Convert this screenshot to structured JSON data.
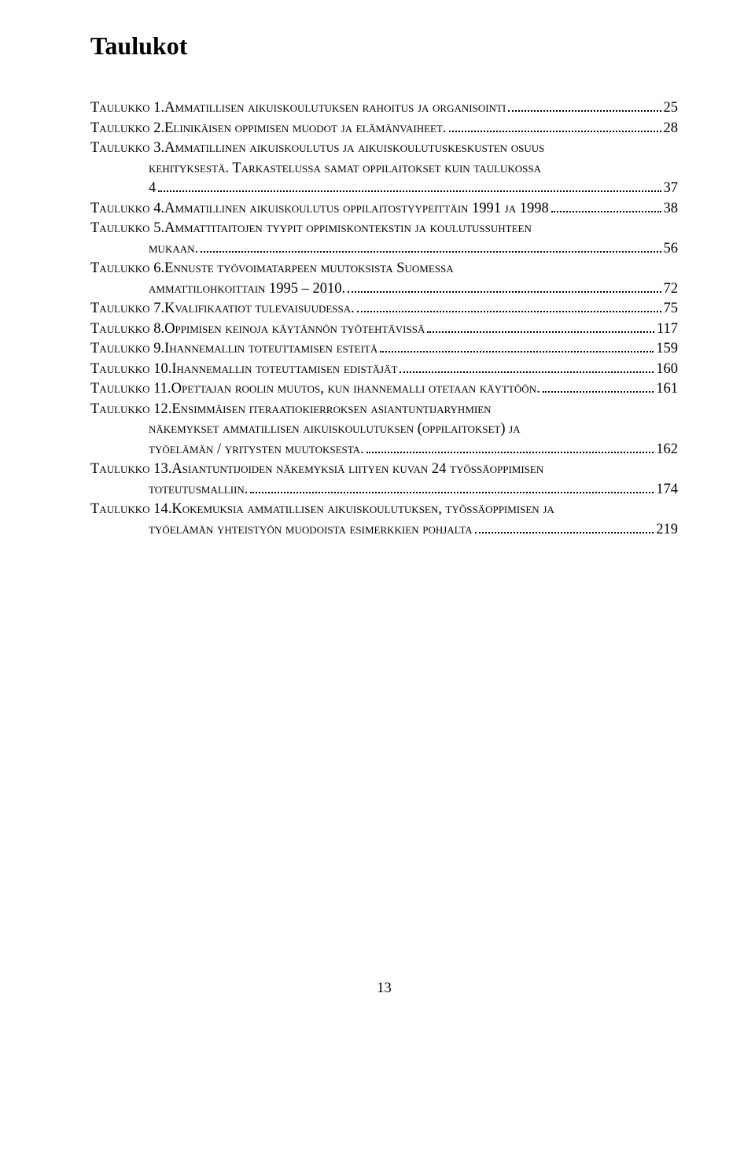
{
  "title": "Taulukot",
  "pagenum": "13",
  "entries": [
    {
      "lines": [
        {
          "label": "Taulukko 1.",
          "text": " Ammatillisen aikuiskoulutuksen rahoitus ja organisointi",
          "page": "25"
        }
      ]
    },
    {
      "lines": [
        {
          "label": "Taulukko 2.",
          "text": " Elinikäisen oppimisen muodot ja elämänvaiheet.",
          "page": "28"
        }
      ]
    },
    {
      "lines": [
        {
          "label": "Taulukko 3.",
          "text": " Ammatillinen aikuiskoulutus ja aikuiskoulutuskeskusten osuus"
        },
        {
          "cont": true,
          "text": "kehityksestä. Tarkastelussa samat oppilaitokset kuin taulukossa"
        },
        {
          "cont": true,
          "text": "4",
          "page": "37"
        }
      ]
    },
    {
      "lines": [
        {
          "label": "Taulukko 4.",
          "text": " Ammatillinen aikuiskoulutus oppilaitostyypeittäin 1991 ja 1998",
          "page": "38"
        }
      ]
    },
    {
      "lines": [
        {
          "label": "Taulukko 5.",
          "text": " Ammattitaitojen tyypit oppimiskontekstin ja koulutussuhteen"
        },
        {
          "cont": true,
          "text": "mukaan.",
          "page": "56"
        }
      ]
    },
    {
      "lines": [
        {
          "label": "Taulukko 6.",
          "text": " Ennuste työvoimatarpeen muutoksista Suomessa"
        },
        {
          "cont": true,
          "text": "ammattilohkoittain 1995 – 2010.",
          "page": "72"
        }
      ]
    },
    {
      "lines": [
        {
          "label": "Taulukko 7.",
          "text": " Kvalifikaatiot tulevaisuudessa.",
          "page": "75"
        }
      ]
    },
    {
      "lines": [
        {
          "label": "Taulukko 8.",
          "text": " Oppimisen keinoja käytännön työtehtävissä",
          "page": "117"
        }
      ]
    },
    {
      "lines": [
        {
          "label": "Taulukko 9.",
          "text": " Ihannemallin toteuttamisen esteitä",
          "page": "159"
        }
      ]
    },
    {
      "lines": [
        {
          "label": "Taulukko 10.",
          "text": " Ihannemallin toteuttamisen edistäjät",
          "page": "160"
        }
      ]
    },
    {
      "lines": [
        {
          "label": "Taulukko 11.",
          "text": " Opettajan roolin muutos, kun ihannemalli otetaan käyttöön.",
          "page": "161"
        }
      ]
    },
    {
      "lines": [
        {
          "label": "Taulukko 12.",
          "text": " Ensimmäisen iteraatiokierroksen asiantuntijaryhmien"
        },
        {
          "cont": true,
          "text": "näkemykset ammatillisen aikuiskoulutuksen (oppilaitokset) ja"
        },
        {
          "cont": true,
          "text": "työelämän / yritysten muutoksesta.",
          "page": "162"
        }
      ]
    },
    {
      "lines": [
        {
          "label": "Taulukko 13.",
          "text": " Asiantuntijoiden näkemyksiä liityen kuvan 24 työssäoppimisen"
        },
        {
          "cont": true,
          "text": "toteutusmalliin.",
          "page": "174"
        }
      ]
    },
    {
      "lines": [
        {
          "label": "Taulukko 14.",
          "text": " Kokemuksia ammatillisen aikuiskoulutuksen, työssäoppimisen ja"
        },
        {
          "cont": true,
          "text": "työelämän yhteistyön muodoista esimerkkien pohjalta",
          "page": "219"
        }
      ]
    }
  ]
}
